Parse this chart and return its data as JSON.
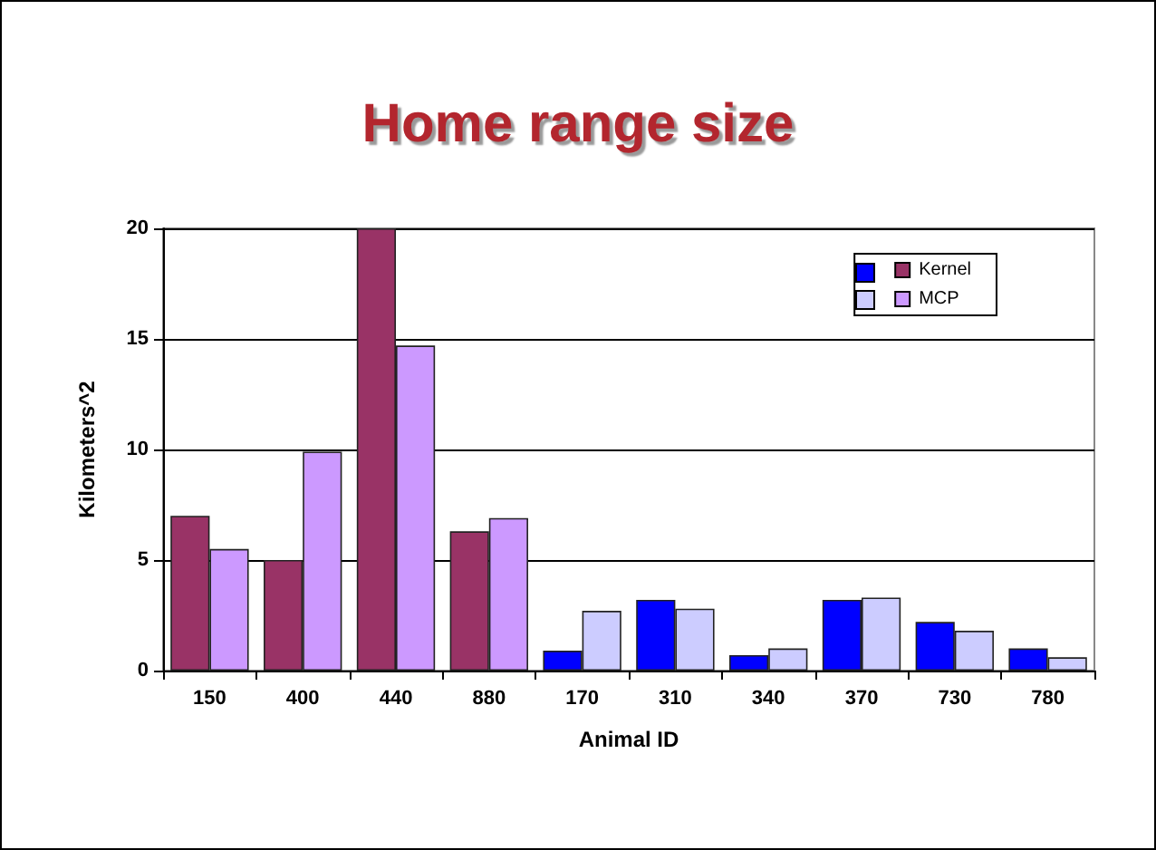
{
  "chart_data": {
    "type": "bar",
    "title": "Home range size",
    "xlabel": "Animal ID",
    "ylabel": "Kilometers^2",
    "categories": [
      "150",
      "400",
      "440",
      "880",
      "170",
      "310",
      "340",
      "370",
      "730",
      "780"
    ],
    "series": [
      {
        "name": "Kernel",
        "color": "#993366",
        "colors": [
          "#993366",
          "#993366",
          "#993366",
          "#993366",
          "#0000ff",
          "#0000ff",
          "#0000ff",
          "#0000ff",
          "#0000ff",
          "#0000ff"
        ],
        "values": [
          7.0,
          5.0,
          20.0,
          6.3,
          0.9,
          3.2,
          0.7,
          3.2,
          2.2,
          1.0
        ]
      },
      {
        "name": "MCP",
        "color": "#cc99ff",
        "colors": [
          "#cc99ff",
          "#cc99ff",
          "#cc99ff",
          "#cc99ff",
          "#ccccff",
          "#ccccff",
          "#ccccff",
          "#ccccff",
          "#ccccff",
          "#ccccff"
        ],
        "values": [
          5.5,
          9.9,
          14.7,
          6.9,
          2.7,
          2.8,
          1.0,
          3.3,
          1.8,
          0.6
        ]
      }
    ],
    "ylim": [
      0,
      20
    ],
    "yticks": [
      0,
      5,
      10,
      15,
      20
    ],
    "grid": "y",
    "legend": "top right"
  }
}
